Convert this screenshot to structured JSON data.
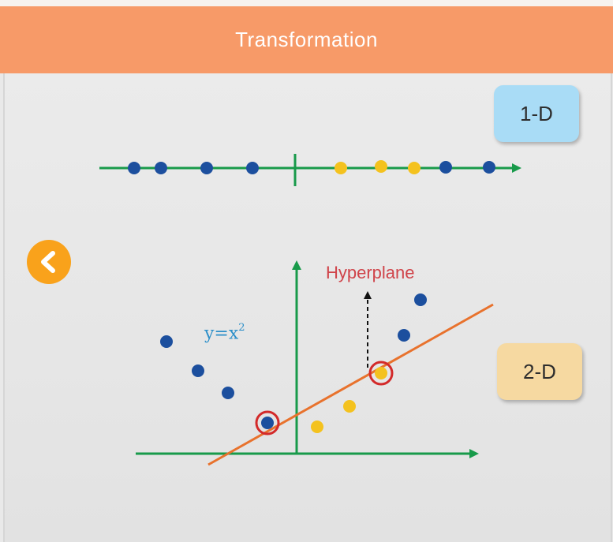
{
  "header": {
    "title": "Transformation"
  },
  "tags": {
    "one_d": "1-D",
    "two_d": "2-D"
  },
  "equation": {
    "base": "y=x",
    "exponent": "2"
  },
  "hyperplane": {
    "label": "Hyperplane"
  },
  "back_button": {
    "icon": "chevron-left-icon"
  },
  "colors": {
    "header": "#f79a68",
    "axis": "#189a4a",
    "blue_point": "#1c4f9e",
    "yellow_point": "#f4c21e",
    "hyperplane_line": "#e8722d",
    "highlight_ring": "#d32a2a",
    "label_red": "#d0444a",
    "equation_blue": "#2c8fc9",
    "tag_1d": "#a9dcf6",
    "tag_2d": "#f6d9a1",
    "back_button": "#f9a21b"
  }
}
